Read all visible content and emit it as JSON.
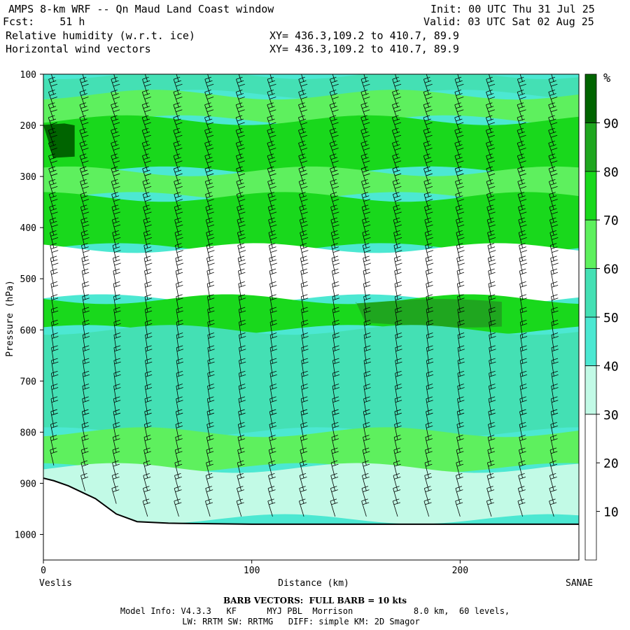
{
  "header": {
    "title": "AMPS 8-km WRF -- Qn Maud Land Coast window",
    "init": "Init: 00 UTC Thu 31 Jul 25",
    "fcst": "Fcst:    51 h",
    "valid": "Valid: 03 UTC Sat 02 Aug 25",
    "field1": "Relative humidity (w.r.t. ice)",
    "field2": "Horizontal wind vectors",
    "xy1": "XY= 436.3,109.2 to 410.7, 89.9",
    "xy2": "XY= 436.3,109.2 to 410.7, 89.9"
  },
  "footer": {
    "barb_note": "BARB VECTORS:  FULL BARB = 10 kts",
    "model_info": "Model Info: V4.3.3   KF      MYJ PBL  Morrison            8.0 km,  60 levels,",
    "physics": "LW: RRTM SW: RRTMG   DIFF: simple KM: 2D Smagor"
  },
  "colors": {
    "c90": "#006400",
    "c80": "#1fa61f",
    "c70": "#19d81c",
    "c60": "#5ef05e",
    "c50": "#44e0b4",
    "c40": "#4ce8d2",
    "c30": "#c2fae6",
    "c0": "#ffffff"
  },
  "chart_data": {
    "type": "heatmap",
    "title": "Relative humidity (w.r.t. ice)",
    "overlay": "Horizontal wind vectors",
    "xlabel": "Distance (km)",
    "ylabel": "Pressure (hPa)",
    "x_endpoints": [
      "Veslis",
      "SANAE"
    ],
    "xlim": [
      0,
      257
    ],
    "ylim": [
      1050,
      100
    ],
    "x_ticks": [
      "0",
      "100",
      "200"
    ],
    "y_ticks": [
      "100",
      "200",
      "300",
      "400",
      "500",
      "600",
      "700",
      "800",
      "900",
      "1000"
    ],
    "colorbar": {
      "unit": "%",
      "levels": [
        "10",
        "20",
        "30",
        "40",
        "50",
        "60",
        "70",
        "80",
        "90"
      ],
      "bins": [
        {
          "range": [
            0,
            30
          ],
          "color": "#ffffff"
        },
        {
          "range": [
            30,
            40
          ],
          "color": "#c2fae6"
        },
        {
          "range": [
            40,
            50
          ],
          "color": "#4ce8d2"
        },
        {
          "range": [
            50,
            60
          ],
          "color": "#44e0b4"
        },
        {
          "range": [
            60,
            70
          ],
          "color": "#5ef05e"
        },
        {
          "range": [
            70,
            80
          ],
          "color": "#19d81c"
        },
        {
          "range": [
            80,
            90
          ],
          "color": "#1fa61f"
        },
        {
          "range": [
            90,
            100
          ],
          "color": "#006400"
        }
      ]
    },
    "layers": [
      {
        "p_top": 100,
        "p_bottom": 140,
        "rh_band": "50-60"
      },
      {
        "p_top": 140,
        "p_bottom": 190,
        "rh_band": "60-70"
      },
      {
        "p_top": 190,
        "p_bottom": 290,
        "rh_band": "70-80"
      },
      {
        "p_top": 200,
        "p_bottom": 260,
        "rh_band": "90-100",
        "x_range": [
          0,
          15
        ]
      },
      {
        "p_top": 290,
        "p_bottom": 340,
        "rh_band": "60-70"
      },
      {
        "p_top": 340,
        "p_bottom": 440,
        "rh_band": "70-80"
      },
      {
        "p_top": 440,
        "p_bottom": 540,
        "rh_band": "0-30"
      },
      {
        "p_top": 540,
        "p_bottom": 600,
        "rh_band": "70-80"
      },
      {
        "p_top": 545,
        "p_bottom": 590,
        "rh_band": "80-90",
        "x_range": [
          150,
          220
        ]
      },
      {
        "p_top": 600,
        "p_bottom": 800,
        "rh_band": "50-60"
      },
      {
        "p_top": 800,
        "p_bottom": 870,
        "rh_band": "60-70"
      },
      {
        "p_top": 870,
        "p_bottom": 970,
        "rh_band": "30-40"
      }
    ],
    "terrain_pressure": [
      {
        "x": 0,
        "p": 890
      },
      {
        "x": 5,
        "p": 895
      },
      {
        "x": 12,
        "p": 905
      },
      {
        "x": 25,
        "p": 930
      },
      {
        "x": 35,
        "p": 960
      },
      {
        "x": 45,
        "p": 975
      },
      {
        "x": 60,
        "p": 978
      },
      {
        "x": 100,
        "p": 980
      },
      {
        "x": 257,
        "p": 980
      }
    ],
    "wind_barbs": {
      "x_step_km": 15,
      "p_step_hpa": 25,
      "full_barb_kts": 10
    }
  }
}
